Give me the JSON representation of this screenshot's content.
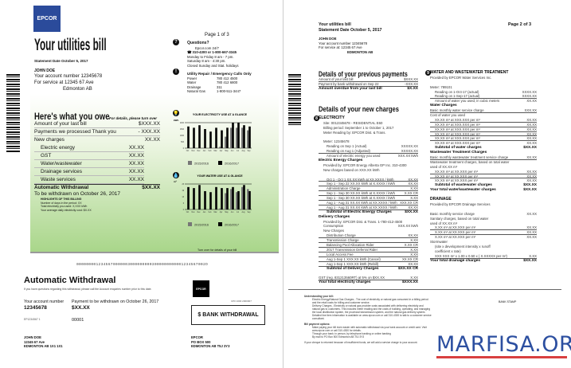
{
  "page1": {
    "logo": "EPCOR",
    "page_num": "Page 1 of 3",
    "title": "Your utilities bill",
    "statement_date": "Statement Date October 5, 2017",
    "customer": {
      "name": "JOHN DOE",
      "account": "Your account number   12345678",
      "service": "For service at 12345 67 Ave",
      "city": "Edmonton AB"
    },
    "questions": {
      "title": "Questions?",
      "web": "Epcor.com 24/7",
      "phone": "310-4300 or 1-800-667-3345",
      "hours1": "Monday to Friday 8 am - 7 pm.",
      "hours2": "Saturday 8 am - 4:30 pm.",
      "closed": "Closed Sunday and Stat. holidays"
    },
    "emergency": {
      "title": "Utility Repair / Emergency Calls Only",
      "lines": [
        {
          "label": "Power",
          "value": "780 412 4500"
        },
        {
          "label": "Water",
          "value": "780 412 6800"
        },
        {
          "label": "Drainage",
          "value": "311"
        },
        {
          "label": "Natural Gas",
          "value": "1-800-511-3447"
        }
      ]
    },
    "owe": {
      "title": "Here's what you owe",
      "subtitle": "For details, please turn over",
      "rows": [
        {
          "label": "Amount of your last bill",
          "value": "$XXX.XX"
        },
        {
          "label": "Payments we processed Thank you",
          "value": "- XXX.XX"
        },
        {
          "label": "New charges",
          "value": "XX.XX"
        }
      ],
      "items": [
        {
          "label": "Electric energy",
          "value": "XX.XX"
        },
        {
          "label": "GST",
          "value": "XX.XX"
        },
        {
          "label": "Water/wastewater",
          "value": "XX.XX"
        },
        {
          "label": "Drainage services",
          "value": "XX.XX"
        },
        {
          "label": "Waste services",
          "value": "XX.XX"
        }
      ],
      "total_label": "Automatic Withdrawal",
      "total_value": "$XX.XX",
      "withdraw_date": "To be withdrawn on October 26, 2017",
      "highlights_title": "HIGHLIGHTS OF THIS BILLING",
      "highlights": [
        "Number of days in the period: XX",
        "Total electricity you used: X,XXX kWh",
        "Your average daily electricity cost: $X.XX"
      ]
    },
    "turn_over": "Turn over for details of your bill",
    "remit": {
      "code_line": "00000000123456700000030000000003000000000001234567002O",
      "title": "Automatic Withdrawal",
      "note": "If you have questions regarding this withdrawal, please call the Account enquiries number prior to this date.",
      "account_label": "Your account number",
      "account": "12345678",
      "pay_label": "Payment to be withdrawn on  October 26, 2017",
      "amount": "$XX.XX",
      "ref": "EP1234567 1",
      "seq": "00001",
      "addr": [
        "JOHN DOE",
        "12345 67 Ave",
        "EDMONTON AB 1X1 1X1"
      ],
      "logo": "EPCOR",
      "cp": "CP0 1000 2000007",
      "bank": "$  BANK WITHDRAWAL",
      "epcor_addr": [
        "EPCOR",
        "PO BOX 500",
        "EDMONTON AB  T5J 3Y3"
      ]
    }
  },
  "chart_data": [
    {
      "type": "bar",
      "title": "YOUR ELECTRICITY USE AT A GLANCE",
      "ylabel": "kWh",
      "categories": [
        "Oct",
        "Nov",
        "Dec",
        "Jan",
        "Feb",
        "Mar",
        "Apr",
        "May",
        "Jun",
        "Jul",
        "Aug",
        "Sep"
      ],
      "ylim": [
        0,
        2000
      ],
      "series": [
        {
          "name": "2015/2016",
          "color": "#777777",
          "values": [
            0,
            0,
            0,
            0,
            0,
            0,
            100,
            900,
            1600,
            1600,
            1600,
            1400
          ]
        },
        {
          "name": "2016/2017",
          "color": "#000000",
          "values": [
            1700,
            1600,
            1800,
            1500,
            1300,
            1600,
            1400,
            1600,
            2000,
            2000,
            1800,
            1700
          ]
        }
      ]
    },
    {
      "type": "bar",
      "title": "YOUR WATER USE AT A GLANCE",
      "ylabel": "m³",
      "categories": [
        "Oct",
        "Nov",
        "Dec",
        "Jan",
        "Feb",
        "Mar",
        "Apr",
        "May",
        "Jun",
        "Jul",
        "Aug",
        "Sep"
      ],
      "ylim": [
        0,
        25
      ],
      "series": [
        {
          "name": "2015/2016",
          "color": "#777777",
          "values": [
            0,
            0,
            0,
            0,
            0,
            0,
            1,
            16,
            20,
            17,
            22,
            20
          ]
        },
        {
          "name": "2016/2017",
          "color": "#000000",
          "values": [
            22,
            21,
            24,
            18,
            17,
            22,
            21,
            21,
            22,
            18,
            24,
            18
          ]
        }
      ]
    }
  ],
  "page2": {
    "title": "Your utilities bill",
    "statement_date": "Statement Date October 5, 2017",
    "page_num": "Page  2 of 3",
    "customer": {
      "name": "JOHN DOE",
      "account": "Your account number      12345678",
      "service": "For service at:  12345 67 Ave",
      "city": "EDMONTON AB"
    },
    "prev": {
      "title": "Details of your previous payments",
      "rows": [
        {
          "label": "Amount of your last bill",
          "value": "$XXX.XX",
          "c": "u"
        },
        {
          "label": "Payment by bank withdrawal on Sep 22",
          "value": "-XXX.XX",
          "c": "u"
        },
        {
          "label": "Amount overdue from your last bill",
          "value": "$X.XX",
          "c": "b"
        }
      ]
    },
    "new_title": "Details of your new charges",
    "electricity": [
      {
        "label": "ELECTRICITY",
        "value": "",
        "c": "h"
      },
      {
        "label": "Site: 0012345678 - RESIDENTIAL E60",
        "value": "",
        "c": "i"
      },
      {
        "label": "Billing period: September 1 to October 1, 2017",
        "value": "",
        "c": "i"
      },
      {
        "label": "Meter Reading by: EPCOR Dist. & Trans.",
        "value": "",
        "c": "i"
      },
      {
        "label": "",
        "value": "",
        "c": ""
      },
      {
        "label": "Meter: 12345678",
        "value": "",
        "c": "i"
      },
      {
        "label": "Reading on Sep 1     (Actual)",
        "value": "XXXXX.XX",
        "c": "ii"
      },
      {
        "label": "Reading on Aug 1     (Adjusted)",
        "value": "XXXXX.XX",
        "c": "ii u"
      },
      {
        "label": "Amount of electric energy you used",
        "value": "XXX.XX  kWh",
        "c": "ii"
      },
      {
        "label": "Electric Energy Charges",
        "value": "",
        "c": "b"
      },
      {
        "label": "Provided by: EPCOR Energy Alberta GP Inc.     310-4300",
        "value": "",
        "c": "i"
      },
      {
        "label": "New charges based on XXX.XX kWh",
        "value": "",
        "c": "i"
      },
      {
        "label": "",
        "value": "",
        "c": ""
      },
      {
        "label": "Oct 1 - Oct 1     XX.XX kWh at XX.XXXX / kWh",
        "value": "XX.XX",
        "c": "ii u"
      },
      {
        "label": "Sep 1 - Sep 22    XX.XX kWh at X.XXXX / kWh",
        "value": "XX.XX",
        "c": "ii u"
      },
      {
        "label": "Administration Charge",
        "value": "X.XX",
        "c": "ii u"
      },
      {
        "label": "Sep 1 - Sep 30    XX.XX kWh at X.XXXX / kWh",
        "value": "X.XX CR",
        "c": "ii u"
      },
      {
        "label": "Sep 1 - Sep 30    XX.XX kWh at X.XXXX / kWh",
        "value": "X.XX",
        "c": "ii u"
      },
      {
        "label": "Aug 1 - Aug 31    XX.XX kWh at XX.XXXX / kWh",
        "value": "XXX.XX CR",
        "c": "ii u"
      },
      {
        "label": "Aug 1 - Aug 31    XX.XX kWh at XX.XXXX / kWh",
        "value": "XX.XX",
        "c": "ii u"
      },
      {
        "label": "Subtotal of Electric Energy Charges",
        "value": "$XX.XX",
        "c": "b ii"
      },
      {
        "label": "Delivery Charges",
        "value": "",
        "c": "b"
      },
      {
        "label": "Provided by: EPCOR Dist. & Trans.  1-780-412-4500",
        "value": "",
        "c": "i"
      },
      {
        "label": "Consumption",
        "value": "XXX.XX   kWh",
        "c": "i"
      },
      {
        "label": "New Charges",
        "value": "",
        "c": "i"
      },
      {
        "label": "Distribution Charge",
        "value": "XX.XX",
        "c": "ii u"
      },
      {
        "label": "Transmission Charge",
        "value": "X.XX",
        "c": "ii u"
      },
      {
        "label": "Balancing Pool Allocation Rider",
        "value": "X.XX CR",
        "c": "ii u"
      },
      {
        "label": "2017 Transmission Deferral Rider",
        "value": "X.XX",
        "c": "ii u"
      },
      {
        "label": "Local Access Fee",
        "value": "X.XX",
        "c": "ii u"
      },
      {
        "label": "Aug 1-Sep 1      XXX.XX kWh (Cancel)",
        "value": "XX.XX CR",
        "c": "ii u"
      },
      {
        "label": "Aug 1-Sep 1      XXX.XX kWh (Rebill)",
        "value": "XX.XX",
        "c": "ii u"
      },
      {
        "label": "Subtotal of Delivery Charges",
        "value": "$XX.XX CR",
        "c": "b ii"
      },
      {
        "label": "",
        "value": "",
        "c": ""
      },
      {
        "label": "GST (reg. 831213560RT) at 5% on $XX.XX",
        "value": "X.XX",
        "c": "u"
      },
      {
        "label": "Your total electricity charges",
        "value": "$XXX.XX",
        "c": "b"
      }
    ],
    "water": [
      {
        "label": "WATER AND WASTEWATER TREATMENT",
        "value": "",
        "c": "h"
      },
      {
        "label": "Provided by EPCOR Water Services Inc.",
        "value": "",
        "c": ""
      },
      {
        "label": "",
        "value": "",
        "c": ""
      },
      {
        "label": "Meter: 789101",
        "value": "",
        "c": ""
      },
      {
        "label": "Reading on 1-Oct-17 (actual)",
        "value": "XXXX.XX",
        "c": "i"
      },
      {
        "label": "Reading on 1-Sep-17 (actual)",
        "value": "XXXX.XX",
        "c": "i u"
      },
      {
        "label": "Amount of water you used, in cubic meters",
        "value": "XX.XX",
        "c": "i"
      },
      {
        "label": "Water Charges",
        "value": "",
        "c": "b"
      },
      {
        "label": "Basic monthly water service charge",
        "value": "XXX.XX",
        "c": "u"
      },
      {
        "label": "Cost of water you used",
        "value": "",
        "c": ""
      },
      {
        "label": "XX.XX m³ at XXX.XXX per m³",
        "value": "XX.XX",
        "c": "i u"
      },
      {
        "label": "XX.XX m³ at XXX.XXX per m³",
        "value": "XX.XX",
        "c": "i u"
      },
      {
        "label": "XX.XX m³ at XXX.XXX per m³",
        "value": "XX.XX",
        "c": "i u"
      },
      {
        "label": "XX.XX m³ at XXX.XXX per m³",
        "value": "XX.XX",
        "c": "i u"
      },
      {
        "label": "XX.XX m³ at XXX.XXX per m³",
        "value": "XX.XX",
        "c": "i u"
      },
      {
        "label": "XX.XX m³ at XXX.XXX per m³",
        "value": "XX.XX",
        "c": "i"
      },
      {
        "label": "Subtotal of water charges",
        "value": "$XX.XX",
        "c": "b i"
      },
      {
        "label": "Wastewater Treatment Charges",
        "value": "",
        "c": "b"
      },
      {
        "label": "Basic monthly wastewater treatment service charge",
        "value": "XX.XX",
        "c": "u"
      },
      {
        "label": "Wastewater treatment charges, based on total water",
        "value": "",
        "c": ""
      },
      {
        "label": "used of XX.XX m³",
        "value": "",
        "c": ""
      },
      {
        "label": "XX.XX m³ at XX.XXX per m³",
        "value": "XX.XX",
        "c": "i u"
      },
      {
        "label": "XX.XX m³ at XX.XXX per m³",
        "value": "XX.XX",
        "c": "i u"
      },
      {
        "label": "XX.XX m³ at XX.XXX per m³",
        "value": "XX.XX",
        "c": "i"
      },
      {
        "label": "Subtotal of wastewater charges",
        "value": "$XX.XX",
        "c": "b i"
      },
      {
        "label": "Your total water/wastewater charges",
        "value": "$XX.XX",
        "c": "b"
      },
      {
        "label": "",
        "value": "",
        "c": ""
      },
      {
        "label": "DRAINAGE",
        "value": "",
        "c": "h"
      },
      {
        "label": "Provided by EPCOR Drainage Services",
        "value": "",
        "c": ""
      },
      {
        "label": "",
        "value": "",
        "c": ""
      },
      {
        "label": "Basic monthly service charge",
        "value": "XX.XX",
        "c": ""
      },
      {
        "label": "Sanitary charges, based on total water",
        "value": "",
        "c": ""
      },
      {
        "label": "used of XX.XX m³",
        "value": "",
        "c": ""
      },
      {
        "label": "X.XX m³ at XX.XXX per m³",
        "value": "XX.XX",
        "c": "i u"
      },
      {
        "label": "X.XX m³ at XX.XXX per m³",
        "value": "XX.XX",
        "c": "i u"
      },
      {
        "label": "X.XX m³ at XX.XXX per m³",
        "value": "XX.XX",
        "c": "i"
      },
      {
        "label": "Stormwater",
        "value": "",
        "c": ""
      },
      {
        "label": "(site x development intensity x runoff",
        "value": "",
        "c": "i"
      },
      {
        "label": "coefficient x rate)",
        "value": "",
        "c": "i"
      },
      {
        "label": "XXX XXX m² x 1.00 x 0.50 x ( X.XXXXX per m²)",
        "value": "X.XX",
        "c": "i u"
      },
      {
        "label": "Your total drainage charges",
        "value": "$XX.XX",
        "c": "b"
      }
    ],
    "understanding": {
      "title": "Understanding your bill:",
      "bullets": [
        "Electric Energy/Natural Gas Charges - The cost of electricity or natural gas consumed in a billing period and the retail costs for billing and customer service.",
        "Delivery Charges - Electricity or natural gas provider costs associated with delivering electricity and natural gas to customers. This includes meter reading and the costs of building, operating, and managing the local distribution system, the provincial transmission system, and the natural gas delivery system.",
        "Detailed line item information is available on www.epcor.com or call 310-4300 to talk to a customer service consultant."
      ],
      "stamp": "BANK STAMP"
    },
    "payment": {
      "title": "Bill payment options:",
      "bullets": [
        "Make paying your bill even easier with automatic withdrawal via your bank account or credit card. Visit www.epcor.com or call 310-4300 for details.",
        "Through your bank: in person, by telephone banking or online banking",
        "By mail to PO Box 500 Edmonton AB T5J 3Y3"
      ],
      "footer": "If your cheque is returned because of insufficient funds, we will add a service charge to your account."
    }
  },
  "watermark": {
    "text": "MARFISA.ORG",
    "color": "#2c4fa0",
    "underline": "#d94040"
  }
}
